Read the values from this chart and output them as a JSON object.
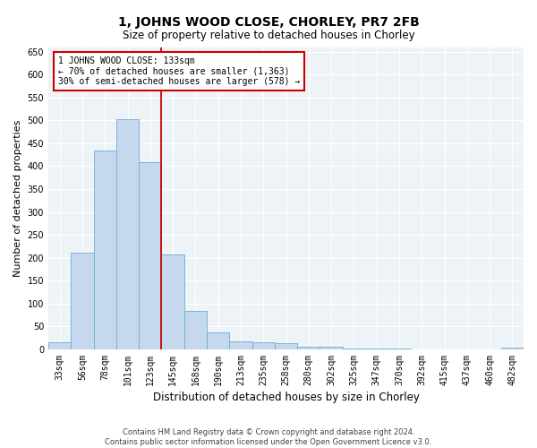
{
  "title": "1, JOHNS WOOD CLOSE, CHORLEY, PR7 2FB",
  "subtitle": "Size of property relative to detached houses in Chorley",
  "xlabel": "Distribution of detached houses by size in Chorley",
  "ylabel": "Number of detached properties",
  "categories": [
    "33sqm",
    "56sqm",
    "78sqm",
    "101sqm",
    "123sqm",
    "145sqm",
    "168sqm",
    "190sqm",
    "213sqm",
    "235sqm",
    "258sqm",
    "280sqm",
    "302sqm",
    "325sqm",
    "347sqm",
    "370sqm",
    "392sqm",
    "415sqm",
    "437sqm",
    "460sqm",
    "482sqm"
  ],
  "values": [
    15,
    212,
    435,
    503,
    409,
    207,
    84,
    38,
    17,
    15,
    13,
    6,
    5,
    2,
    1,
    1,
    0,
    0,
    0,
    0,
    4
  ],
  "bar_color": "#c5d8ed",
  "bar_edge_color": "#6baed6",
  "background_color": "#eef3f8",
  "vline_color": "#cc0000",
  "annotation_line1": "1 JOHNS WOOD CLOSE: 133sqm",
  "annotation_line2": "← 70% of detached houses are smaller (1,363)",
  "annotation_line3": "30% of semi-detached houses are larger (578) →",
  "annotation_box_color": "#cc0000",
  "ylim": [
    0,
    660
  ],
  "yticks": [
    0,
    50,
    100,
    150,
    200,
    250,
    300,
    350,
    400,
    450,
    500,
    550,
    600,
    650
  ],
  "footer_line1": "Contains HM Land Registry data © Crown copyright and database right 2024.",
  "footer_line2": "Contains public sector information licensed under the Open Government Licence v3.0.",
  "title_fontsize": 10,
  "subtitle_fontsize": 8.5,
  "xlabel_fontsize": 8.5,
  "ylabel_fontsize": 8,
  "tick_fontsize": 7,
  "annotation_fontsize": 7,
  "footer_fontsize": 6
}
